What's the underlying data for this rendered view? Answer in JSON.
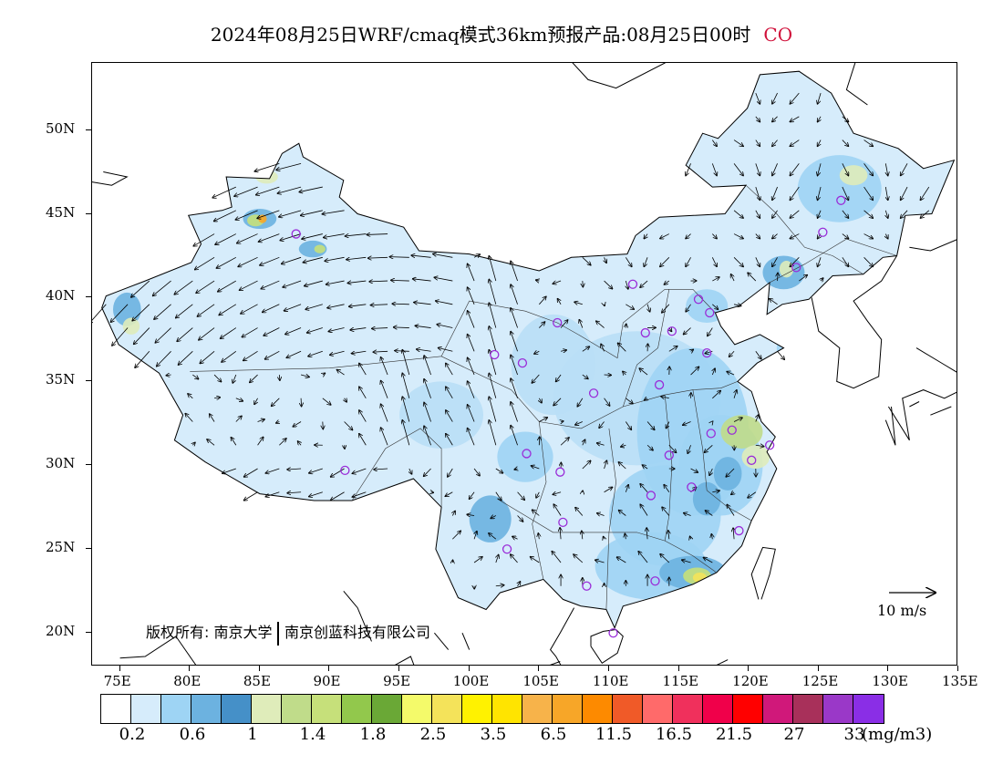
{
  "title": {
    "text": "2024年08月25日WRF/cmaq模式36km预报产品:08月25日00时",
    "species": "CO",
    "species_color": "#d0103a"
  },
  "map": {
    "lon_range": [
      73,
      135
    ],
    "lat_range": [
      18,
      54
    ],
    "lat_labels": [
      "50N",
      "45N",
      "40N",
      "35N",
      "30N",
      "25N",
      "20N"
    ],
    "lat_values": [
      50,
      45,
      40,
      35,
      30,
      25,
      20
    ],
    "lon_labels": [
      "75E",
      "80E",
      "85E",
      "90E",
      "95E",
      "100E",
      "105E",
      "110E",
      "115E",
      "120E",
      "125E",
      "130E",
      "135E"
    ],
    "lon_values": [
      75,
      80,
      85,
      90,
      95,
      100,
      105,
      110,
      115,
      120,
      125,
      130,
      135
    ],
    "stations": [
      [
        87.6,
        43.8
      ],
      [
        91.1,
        29.7
      ],
      [
        101.8,
        36.6
      ],
      [
        103.8,
        36.1
      ],
      [
        106.3,
        38.5
      ],
      [
        111.7,
        40.8
      ],
      [
        104.1,
        30.7
      ],
      [
        106.5,
        29.6
      ],
      [
        108.9,
        34.3
      ],
      [
        106.7,
        26.6
      ],
      [
        102.7,
        25.0
      ],
      [
        108.4,
        22.8
      ],
      [
        110.3,
        20.0
      ],
      [
        113.3,
        23.1
      ],
      [
        113.0,
        28.2
      ],
      [
        114.3,
        30.6
      ],
      [
        113.6,
        34.8
      ],
      [
        112.6,
        37.9
      ],
      [
        114.5,
        38.0
      ],
      [
        115.9,
        28.7
      ],
      [
        117.3,
        31.9
      ],
      [
        118.8,
        32.1
      ],
      [
        120.2,
        30.3
      ],
      [
        121.5,
        31.2
      ],
      [
        117.0,
        36.7
      ],
      [
        117.2,
        39.1
      ],
      [
        116.4,
        39.9
      ],
      [
        119.3,
        26.1
      ],
      [
        123.4,
        41.8
      ],
      [
        125.3,
        43.9
      ],
      [
        126.6,
        45.8
      ]
    ],
    "station_color": "#9a2cd8"
  },
  "copyright": {
    "text1": "版权所有: 南京大学",
    "text2": "南京创蓝科技有限公司"
  },
  "reference_vector": {
    "label": "10 m/s"
  },
  "colorbar": {
    "colors": [
      "#ffffff",
      "#d6ecfb",
      "#9ed4f4",
      "#6cb2e0",
      "#4590c8",
      "#dfecba",
      "#c0dc8a",
      "#c6e07a",
      "#92c84c",
      "#6aa836",
      "#f4fa6a",
      "#f4e35a",
      "#fff200",
      "#ffe400",
      "#f7b34a",
      "#f7a628",
      "#fd8a00",
      "#f05a28",
      "#ff6a6a",
      "#f0305c",
      "#f0004a",
      "#ff0000",
      "#d0187a",
      "#a8305a",
      "#9a38c8",
      "#8a2ee6"
    ],
    "labels": [
      "0.2",
      "0.6",
      "1",
      "1.4",
      "1.8",
      "2.5",
      "3.5",
      "6.5",
      "11.5",
      "16.5",
      "21.5",
      "27",
      "33"
    ],
    "unit": "(mg/m3)"
  }
}
